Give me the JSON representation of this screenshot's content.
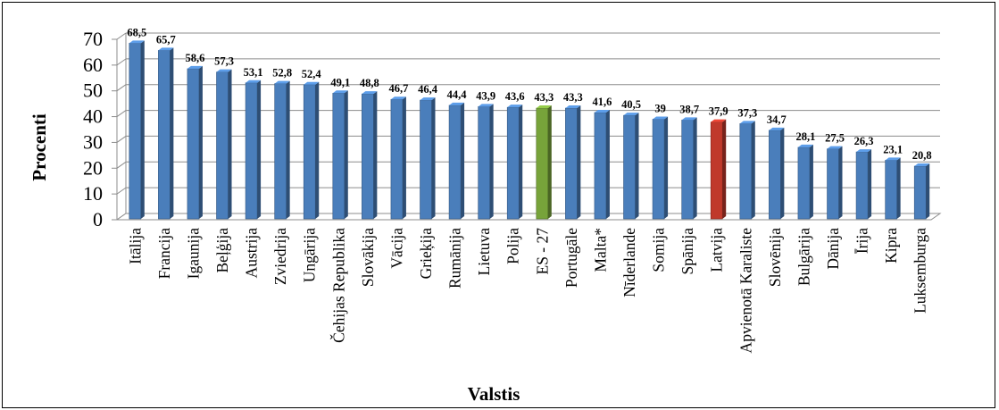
{
  "chart_data": {
    "type": "bar",
    "title": "",
    "xlabel": "Valstis",
    "ylabel": "Procenti",
    "ylim": [
      0,
      70
    ],
    "yticks": [
      "0",
      "10",
      "20",
      "30",
      "40",
      "50",
      "60",
      "70"
    ],
    "grid": true,
    "legend": "none",
    "categories": [
      "Itālija",
      "Francija",
      "Igaunija",
      "Beļģija",
      "Austrija",
      "Zviedrija",
      "Ungārija",
      "Čehijas Republika",
      "Slovākija",
      "Vācija",
      "Grieķija",
      "Rumānija",
      "Lietuva",
      "Polija",
      "ES - 27",
      "Portugāle",
      "Malta*",
      "Nīderlande",
      "Somija",
      "Spānija",
      "Latvija",
      "Apvienotā Karaliste",
      "Slovēnija",
      "Bulgārija",
      "Dānija",
      "Īrija",
      "Kipra",
      "Luksemburga"
    ],
    "values": [
      68.5,
      65.7,
      58.6,
      57.3,
      53.1,
      52.8,
      52.4,
      49.1,
      48.8,
      46.7,
      46.4,
      44.4,
      43.9,
      43.6,
      43.3,
      43.3,
      41.6,
      40.5,
      39,
      38.7,
      37.9,
      37.3,
      34.7,
      28.1,
      27.5,
      26.3,
      23.1,
      20.8
    ],
    "value_labels": [
      "68,5",
      "65,7",
      "58,6",
      "57,3",
      "53,1",
      "52,8",
      "52,4",
      "49,1",
      "48,8",
      "46,7",
      "46,4",
      "44,4",
      "43,9",
      "43,6",
      "43,3",
      "43,3",
      "41,6",
      "40,5",
      "39",
      "38,7",
      "37,9",
      "37,3",
      "34,7",
      "28,1",
      "27,5",
      "26,3",
      "23,1",
      "20,8"
    ],
    "colors": {
      "default": "#4a7ebb",
      "highlight": {
        "ES - 27": "#77a33a",
        "Latvija": "#c0392b"
      }
    }
  }
}
